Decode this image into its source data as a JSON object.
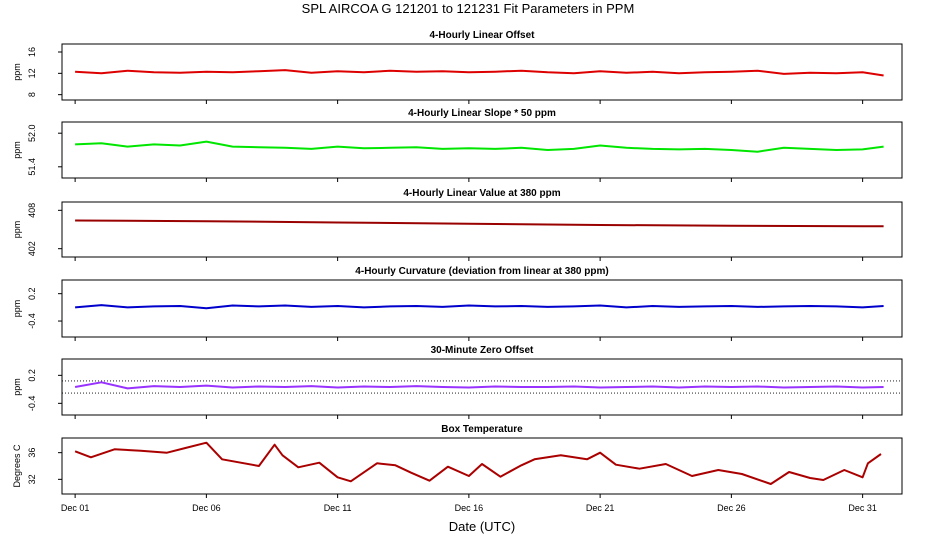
{
  "title": "SPL    AIRCOA G    121201 to 121231    Fit Parameters in PPM",
  "xlabel": "Date (UTC)",
  "chart_data": [
    {
      "type": "line",
      "title": "4-Hourly Linear Offset",
      "ylabel": "ppm",
      "ylim": [
        7,
        17.5
      ],
      "yticks": [
        8,
        12,
        16
      ],
      "xlim": [
        0.5,
        32.5
      ],
      "xticks": [
        1,
        6,
        11,
        16,
        21,
        26,
        31
      ],
      "xticklabels": [
        "Dec 01",
        "Dec 06",
        "Dec 11",
        "Dec 16",
        "Dec 21",
        "Dec 26",
        "Dec 31"
      ],
      "x": [
        1,
        2,
        3,
        4,
        5,
        6,
        7,
        8,
        9,
        10,
        11,
        12,
        13,
        14,
        15,
        16,
        17,
        18,
        19,
        20,
        21,
        22,
        23,
        24,
        25,
        26,
        27,
        28,
        29,
        30,
        31,
        31.8
      ],
      "series": [
        {
          "values": [
            12.3,
            12.0,
            12.5,
            12.2,
            12.1,
            12.3,
            12.2,
            12.4,
            12.6,
            12.1,
            12.4,
            12.2,
            12.5,
            12.3,
            12.4,
            12.2,
            12.3,
            12.5,
            12.2,
            12.0,
            12.4,
            12.1,
            12.3,
            12.0,
            12.2,
            12.3,
            12.5,
            11.9,
            12.1,
            12.0,
            12.2,
            11.6
          ],
          "color": "#dd0000"
        }
      ]
    },
    {
      "type": "line",
      "title": "4-Hourly Linear Slope * 50 ppm",
      "ylabel": "ppm",
      "ylim": [
        51.2,
        52.2
      ],
      "yticks": [
        51.4,
        52.0
      ],
      "yticklabels": [
        "51.4",
        "52.0"
      ],
      "xlim": [
        0.5,
        32.5
      ],
      "xticks": [
        1,
        6,
        11,
        16,
        21,
        26,
        31
      ],
      "xticklabels": [
        "Dec 01",
        "Dec 06",
        "Dec 11",
        "Dec 16",
        "Dec 21",
        "Dec 26",
        "Dec 31"
      ],
      "x": [
        1,
        2,
        3,
        4,
        5,
        6,
        7,
        8,
        9,
        10,
        11,
        12,
        13,
        14,
        15,
        16,
        17,
        18,
        19,
        20,
        21,
        22,
        23,
        24,
        25,
        26,
        27,
        28,
        29,
        30,
        31,
        31.8
      ],
      "series": [
        {
          "values": [
            51.8,
            51.82,
            51.76,
            51.8,
            51.78,
            51.85,
            51.76,
            51.75,
            51.74,
            51.72,
            51.76,
            51.73,
            51.74,
            51.75,
            51.72,
            51.73,
            51.72,
            51.74,
            51.7,
            51.72,
            51.78,
            51.74,
            51.72,
            51.71,
            51.72,
            51.7,
            51.67,
            51.74,
            51.72,
            51.7,
            51.71,
            51.76
          ],
          "color": "#00e600"
        }
      ]
    },
    {
      "type": "line",
      "title": "4-Hourly Linear Value at 380 ppm",
      "ylabel": "ppm",
      "ylim": [
        400.7,
        409.3
      ],
      "yticks": [
        402,
        408
      ],
      "xlim": [
        0.5,
        32.5
      ],
      "xticks": [
        1,
        6,
        11,
        16,
        21,
        26,
        31
      ],
      "xticklabels": [
        "Dec 01",
        "Dec 06",
        "Dec 11",
        "Dec 16",
        "Dec 21",
        "Dec 26",
        "Dec 31"
      ],
      "x": [
        1,
        6,
        11,
        16,
        21,
        26,
        31,
        31.8
      ],
      "series": [
        {
          "values": [
            406.4,
            406.3,
            406.1,
            405.9,
            405.7,
            405.6,
            405.5,
            405.5
          ],
          "color": "#990000"
        }
      ]
    },
    {
      "type": "line",
      "title": "4-Hourly Curvature (deviation from linear at 380 ppm)",
      "ylabel": "ppm",
      "ylim": [
        -0.75,
        0.5
      ],
      "yticks": [
        -0.4,
        0.2
      ],
      "yticklabels": [
        "-0.4",
        "0.2"
      ],
      "xlim": [
        0.5,
        32.5
      ],
      "xticks": [
        1,
        6,
        11,
        16,
        21,
        26,
        31
      ],
      "xticklabels": [
        "Dec 01",
        "Dec 06",
        "Dec 11",
        "Dec 16",
        "Dec 21",
        "Dec 26",
        "Dec 31"
      ],
      "x": [
        1,
        2,
        3,
        4,
        5,
        6,
        7,
        8,
        9,
        10,
        11,
        12,
        13,
        14,
        15,
        16,
        17,
        18,
        19,
        20,
        21,
        22,
        23,
        24,
        25,
        26,
        27,
        28,
        29,
        30,
        31,
        31.8
      ],
      "series": [
        {
          "values": [
            -0.1,
            -0.05,
            -0.1,
            -0.08,
            -0.07,
            -0.12,
            -0.06,
            -0.08,
            -0.06,
            -0.09,
            -0.07,
            -0.1,
            -0.08,
            -0.07,
            -0.09,
            -0.06,
            -0.08,
            -0.07,
            -0.09,
            -0.08,
            -0.06,
            -0.1,
            -0.07,
            -0.09,
            -0.08,
            -0.07,
            -0.09,
            -0.08,
            -0.07,
            -0.08,
            -0.1,
            -0.07
          ],
          "color": "#0000cc"
        }
      ]
    },
    {
      "type": "line",
      "title": "30-Minute Zero Offset",
      "ylabel": "ppm",
      "ylim": [
        -0.65,
        0.55
      ],
      "yticks": [
        -0.4,
        0.2
      ],
      "yticklabels": [
        "-0.4",
        "0.2"
      ],
      "xlim": [
        0.5,
        32.5
      ],
      "xticks": [
        1,
        6,
        11,
        16,
        21,
        26,
        31
      ],
      "xticklabels": [
        "Dec 01",
        "Dec 06",
        "Dec 11",
        "Dec 16",
        "Dec 21",
        "Dec 26",
        "Dec 31"
      ],
      "x": [
        1,
        2,
        3,
        4,
        5,
        6,
        7,
        8,
        9,
        10,
        11,
        12,
        13,
        14,
        15,
        16,
        17,
        18,
        19,
        20,
        21,
        22,
        23,
        24,
        25,
        26,
        27,
        28,
        29,
        30,
        31,
        31.8
      ],
      "series": [
        {
          "values": [
            -0.05,
            0.05,
            -0.08,
            -0.03,
            -0.05,
            -0.02,
            -0.06,
            -0.04,
            -0.05,
            -0.03,
            -0.06,
            -0.04,
            -0.05,
            -0.03,
            -0.05,
            -0.06,
            -0.04,
            -0.05,
            -0.05,
            -0.04,
            -0.06,
            -0.05,
            -0.04,
            -0.06,
            -0.04,
            -0.05,
            -0.04,
            -0.06,
            -0.05,
            -0.04,
            -0.06,
            -0.05
          ],
          "color": "#9933ff"
        }
      ],
      "reference_lines": [
        0.08,
        -0.18
      ]
    },
    {
      "type": "line",
      "title": "Box Temperature",
      "ylabel": "Degrees C",
      "ylim": [
        29.8,
        38.2
      ],
      "yticks": [
        32,
        36
      ],
      "xlim": [
        0.5,
        32.5
      ],
      "xticks": [
        1,
        6,
        11,
        16,
        21,
        26,
        31
      ],
      "xticklabels": [
        "Dec 01",
        "Dec 06",
        "Dec 11",
        "Dec 16",
        "Dec 21",
        "Dec 26",
        "Dec 31"
      ],
      "x": [
        1,
        1.6,
        2.5,
        3.5,
        4.5,
        5.2,
        6,
        6.6,
        8,
        8.6,
        8.9,
        9.5,
        10.3,
        11,
        11.5,
        12.5,
        13.2,
        13.8,
        14.5,
        15.2,
        16,
        16.5,
        17.2,
        18,
        18.5,
        19.5,
        20.5,
        21,
        21.6,
        22.5,
        23.5,
        24.5,
        25.5,
        26.4,
        27.5,
        28.2,
        29,
        29.5,
        30.3,
        31,
        31.2,
        31.7
      ],
      "series": [
        {
          "values": [
            36.2,
            35.3,
            36.5,
            36.3,
            36,
            36.7,
            37.5,
            35,
            34,
            37.2,
            35.6,
            33.8,
            34.5,
            32.3,
            31.7,
            34.4,
            34.1,
            33,
            31.8,
            33.9,
            32.5,
            34.3,
            32.4,
            34.1,
            35,
            35.6,
            35,
            36,
            34.2,
            33.6,
            34.3,
            32.5,
            33.4,
            32.8,
            31.3,
            33.1,
            32.2,
            31.9,
            33.4,
            32.3,
            34.4,
            35.8
          ],
          "color": "#aa0000"
        }
      ]
    }
  ]
}
